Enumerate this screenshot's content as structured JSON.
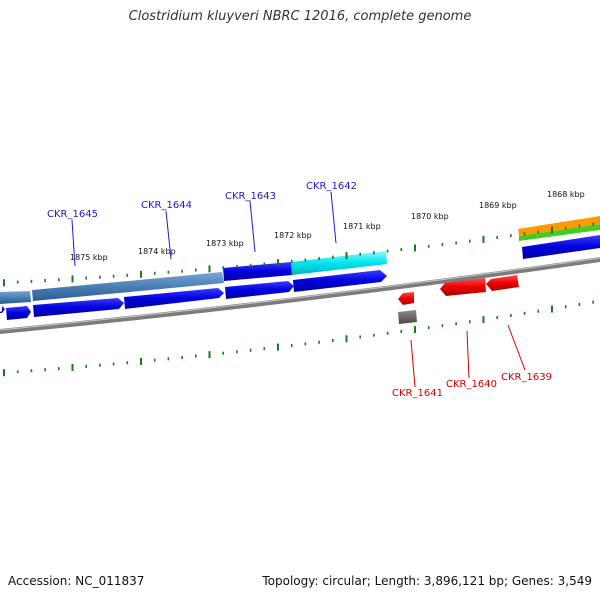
{
  "title": "Clostridium kluyveri NBRC 12016, complete genome",
  "footer": {
    "accession": "Accession: NC_011837",
    "info": "Topology: circular; Length: 3,896,121 bp; Genes: 3,549"
  },
  "ruler_labels": [
    "1875 kbp",
    "1874 kbp",
    "1873 kbp",
    "1872 kbp",
    "1871 kbp",
    "1870 kbp",
    "1869 kbp",
    "1868 kbp"
  ],
  "genes_top": [
    "CKR_1645",
    "CKR_1644",
    "CKR_1643",
    "CKR_1642"
  ],
  "genes_bottom": [
    "CKR_1641",
    "CKR_1640",
    "CKR_1639"
  ],
  "colors": {
    "forward_gene": "#0000dd",
    "reverse_gene": "#ee0000",
    "highlight": "#00e5ee",
    "steel": "#4a7fb5",
    "backbone": "#777777",
    "tick": "#1a7a1a",
    "label_blue": "#1a1acc",
    "label_red": "#d20000"
  }
}
